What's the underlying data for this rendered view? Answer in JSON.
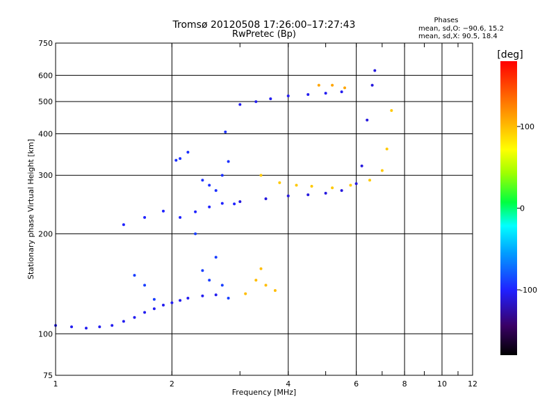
{
  "chart_data": {
    "type": "scatter",
    "title": "Tromsø 20120508 17:26:00–17:27:43",
    "subtitle": "RwPretec (Bp)",
    "xlabel": "Frequency [MHz]",
    "ylabel": "Stationary phase Virtual Height [km]",
    "x_scale": "log",
    "y_scale": "log",
    "xlim": [
      1,
      12
    ],
    "ylim": [
      75,
      750
    ],
    "x_ticks": [
      1,
      2,
      4,
      6,
      8,
      10,
      12
    ],
    "y_ticks": [
      75,
      100,
      200,
      300,
      400,
      500,
      600,
      750
    ],
    "grid": true,
    "phases_title": "Phases",
    "phases": [
      "mean, sd,O: −90.6, 15.2",
      "mean, sd,X:  90.5, 18.4"
    ],
    "colorbar": {
      "label": "[deg]",
      "range": [
        -180,
        180
      ],
      "ticks": [
        100,
        0,
        -100
      ]
    },
    "series": [
      {
        "values": [
          [
            1.0,
            106
          ],
          [
            1.1,
            105
          ],
          [
            1.2,
            104
          ],
          [
            1.3,
            105
          ],
          [
            1.4,
            106
          ],
          [
            1.5,
            109
          ],
          [
            1.6,
            112
          ],
          [
            1.7,
            116
          ],
          [
            1.8,
            119
          ],
          [
            1.9,
            122
          ],
          [
            2.0,
            124
          ],
          [
            2.1,
            126
          ],
          [
            2.2,
            128
          ],
          [
            2.4,
            130
          ],
          [
            2.6,
            131
          ]
        ],
        "phase": -105
      },
      {
        "values": [
          [
            1.5,
            213
          ],
          [
            1.7,
            224
          ],
          [
            1.9,
            234
          ],
          [
            2.1,
            224
          ],
          [
            2.3,
            233
          ],
          [
            2.5,
            241
          ],
          [
            2.7,
            247
          ],
          [
            2.9,
            246
          ]
        ],
        "phase": -100
      },
      {
        "values": [
          [
            2.05,
            333
          ],
          [
            2.1,
            337
          ],
          [
            2.2,
            352
          ],
          [
            2.4,
            290
          ],
          [
            2.5,
            280
          ],
          [
            2.6,
            270
          ],
          [
            2.7,
            300
          ],
          [
            2.75,
            405
          ],
          [
            2.8,
            330
          ]
        ],
        "phase": -95
      },
      {
        "values": [
          [
            1.6,
            150
          ],
          [
            1.7,
            140
          ],
          [
            1.8,
            127
          ],
          [
            2.3,
            200
          ],
          [
            2.4,
            155
          ],
          [
            2.5,
            145
          ],
          [
            2.6,
            170
          ],
          [
            2.7,
            140
          ],
          [
            2.8,
            128
          ]
        ],
        "phase": -90
      },
      {
        "values": [
          [
            3.0,
            250
          ],
          [
            3.5,
            255
          ],
          [
            4.0,
            260
          ],
          [
            4.5,
            262
          ],
          [
            5.0,
            265
          ],
          [
            5.5,
            270
          ],
          [
            6.0,
            283
          ],
          [
            6.2,
            320
          ],
          [
            6.4,
            440
          ],
          [
            6.6,
            560
          ],
          [
            6.7,
            620
          ]
        ],
        "phase": -110
      },
      {
        "values": [
          [
            3.0,
            490
          ],
          [
            3.3,
            500
          ],
          [
            3.6,
            510
          ],
          [
            4.0,
            520
          ],
          [
            4.5,
            525
          ],
          [
            5.0,
            530
          ],
          [
            5.5,
            535
          ]
        ],
        "phase": -105
      },
      {
        "values": [
          [
            3.4,
            300
          ],
          [
            3.8,
            285
          ],
          [
            4.2,
            280
          ],
          [
            4.6,
            278
          ],
          [
            5.2,
            275
          ],
          [
            5.8,
            280
          ],
          [
            6.5,
            290
          ],
          [
            7.0,
            310
          ],
          [
            7.2,
            360
          ],
          [
            7.4,
            470
          ]
        ],
        "phase": 95
      },
      {
        "values": [
          [
            3.1,
            132
          ],
          [
            3.3,
            145
          ],
          [
            3.4,
            157
          ],
          [
            3.5,
            140
          ],
          [
            3.7,
            135
          ]
        ],
        "phase": 100
      },
      {
        "values": [
          [
            4.8,
            560
          ],
          [
            5.2,
            560
          ],
          [
            5.6,
            550
          ]
        ],
        "phase": 110
      }
    ]
  }
}
